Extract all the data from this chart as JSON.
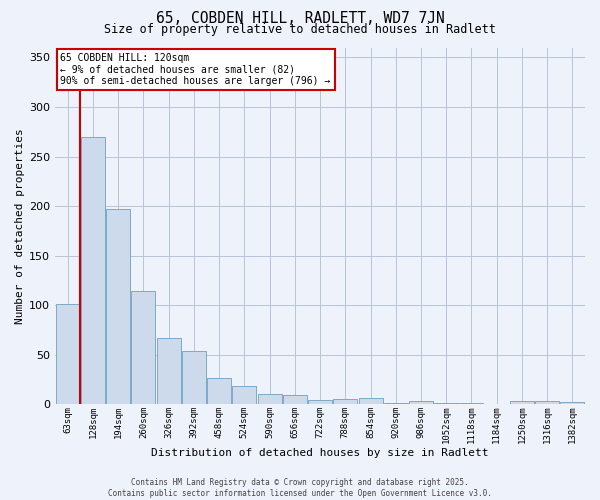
{
  "title": "65, COBDEN HILL, RADLETT, WD7 7JN",
  "subtitle": "Size of property relative to detached houses in Radlett",
  "xlabel": "Distribution of detached houses by size in Radlett",
  "ylabel": "Number of detached properties",
  "bar_color": "#ccdaeb",
  "bar_edge_color": "#7aaac8",
  "bg_color": "#eef2fa",
  "grid_color": "#b8c4d8",
  "marker_color": "#cc0000",
  "categories": [
    "63sqm",
    "128sqm",
    "194sqm",
    "260sqm",
    "326sqm",
    "392sqm",
    "458sqm",
    "524sqm",
    "590sqm",
    "656sqm",
    "722sqm",
    "788sqm",
    "854sqm",
    "920sqm",
    "986sqm",
    "1052sqm",
    "1118sqm",
    "1184sqm",
    "1250sqm",
    "1316sqm",
    "1382sqm"
  ],
  "values": [
    101,
    270,
    197,
    114,
    67,
    54,
    27,
    18,
    10,
    9,
    4,
    5,
    6,
    1,
    3,
    1,
    1,
    0,
    3,
    3,
    2
  ],
  "ylim": [
    0,
    360
  ],
  "yticks": [
    0,
    50,
    100,
    150,
    200,
    250,
    300,
    350
  ],
  "annotation_title": "65 COBDEN HILL: 120sqm",
  "annotation_line1": "← 9% of detached houses are smaller (82)",
  "annotation_line2": "90% of semi-detached houses are larger (796) →",
  "annotation_box_color": "#ffffff",
  "annotation_border_color": "#cc0000",
  "footer_line1": "Contains HM Land Registry data © Crown copyright and database right 2025.",
  "footer_line2": "Contains public sector information licensed under the Open Government Licence v3.0."
}
